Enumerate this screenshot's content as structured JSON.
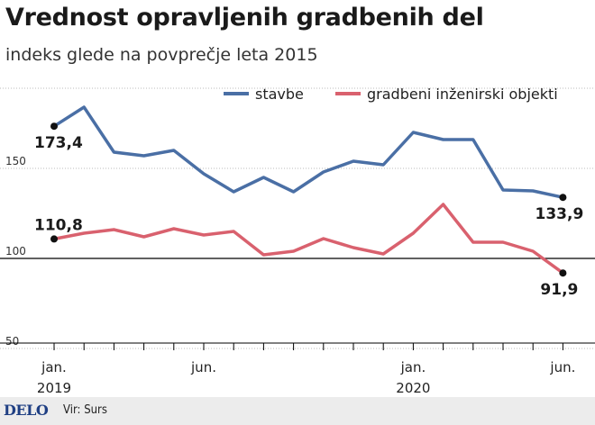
{
  "header": {
    "title": "Vrednost opravljenih gradbenih del",
    "subtitle": "indeks glede na povprečje leta 2015"
  },
  "footer": {
    "logo": "DELO",
    "source": "Vir: Surs"
  },
  "colors": {
    "stavbe": "#4a6fa5",
    "objekti": "#d9616e",
    "axis": "#000000",
    "grid": "#bbbbbb"
  },
  "chart_data": {
    "type": "line",
    "title": "Vrednost opravljenih gradbenih del",
    "subtitle": "indeks glede na povprečje leta 2015",
    "x": [
      "2019-01",
      "2019-02",
      "2019-03",
      "2019-04",
      "2019-05",
      "2019-06",
      "2019-07",
      "2019-08",
      "2019-09",
      "2019-10",
      "2019-11",
      "2019-12",
      "2020-01",
      "2020-02",
      "2020-03",
      "2020-04",
      "2020-05",
      "2020-06"
    ],
    "x_tick_labels": [
      {
        "x": "2019-01",
        "label": "jan.",
        "year": "2019"
      },
      {
        "x": "2019-06",
        "label": "jun.",
        "year": ""
      },
      {
        "x": "2020-01",
        "label": "jan.",
        "year": "2020"
      },
      {
        "x": "2020-06",
        "label": "jun.",
        "year": ""
      }
    ],
    "ylim": [
      40,
      195
    ],
    "yticks": [
      50,
      100,
      150
    ],
    "ytick_labels": [
      "50",
      "100",
      "150"
    ],
    "baseline": 100,
    "legend_position": "top-right",
    "series": [
      {
        "name": "stavbe",
        "color": "#4a6fa5",
        "values": [
          173.4,
          184,
          159,
          157,
          160,
          147,
          137,
          145,
          137,
          148,
          154,
          152,
          170,
          166,
          166,
          138,
          137.5,
          133.9
        ]
      },
      {
        "name": "gradbeni inženirski objekti",
        "color": "#d9616e",
        "values": [
          110.8,
          114,
          116,
          112,
          116.5,
          113,
          115,
          102,
          104,
          111,
          106,
          102.5,
          114,
          130,
          109,
          109,
          104,
          91.9
        ]
      }
    ],
    "annotations": [
      {
        "series": 0,
        "x": "2019-01",
        "text": "173,4",
        "side": "below"
      },
      {
        "series": 0,
        "x": "2020-06",
        "text": "133,9",
        "side": "below"
      },
      {
        "series": 1,
        "x": "2019-01",
        "text": "110,8",
        "side": "above"
      },
      {
        "series": 1,
        "x": "2020-06",
        "text": "91,9",
        "side": "below"
      }
    ]
  }
}
